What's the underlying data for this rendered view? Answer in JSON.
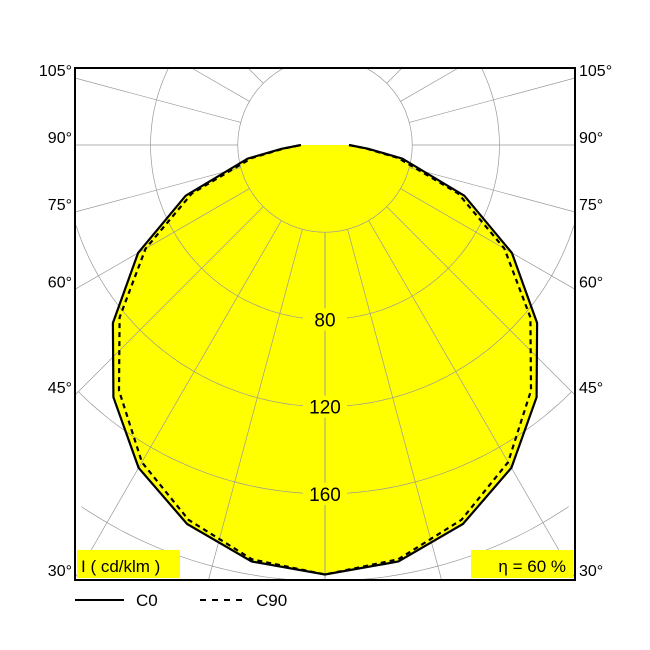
{
  "chart_data": {
    "type": "polar",
    "unit_label": "I ( cd/klm )",
    "efficiency_label": "η = 60 %",
    "ring_labels": [
      "80",
      "120",
      "160"
    ],
    "rings": [
      40,
      80,
      120,
      160,
      200,
      240,
      280
    ],
    "angle_labels": [
      "105°",
      "90°",
      "75°",
      "60°",
      "45°",
      "30°"
    ],
    "angle_values": [
      105,
      90,
      75,
      60,
      45,
      30
    ],
    "fill_color": "#ffff00",
    "grid": true,
    "legend_position": "bottom-left",
    "angles": [
      0,
      10,
      20,
      30,
      40,
      50,
      60,
      70,
      80,
      85,
      90
    ],
    "series": [
      {
        "name": "C0",
        "style": "solid",
        "values": [
          197,
          194,
          185,
          171,
          151,
          127,
          99,
          68,
          36,
          20,
          11
        ]
      },
      {
        "name": "C90",
        "style": "dashed",
        "values": [
          197,
          193,
          183,
          168,
          147,
          123,
          95,
          65,
          34,
          19,
          11
        ]
      }
    ]
  }
}
